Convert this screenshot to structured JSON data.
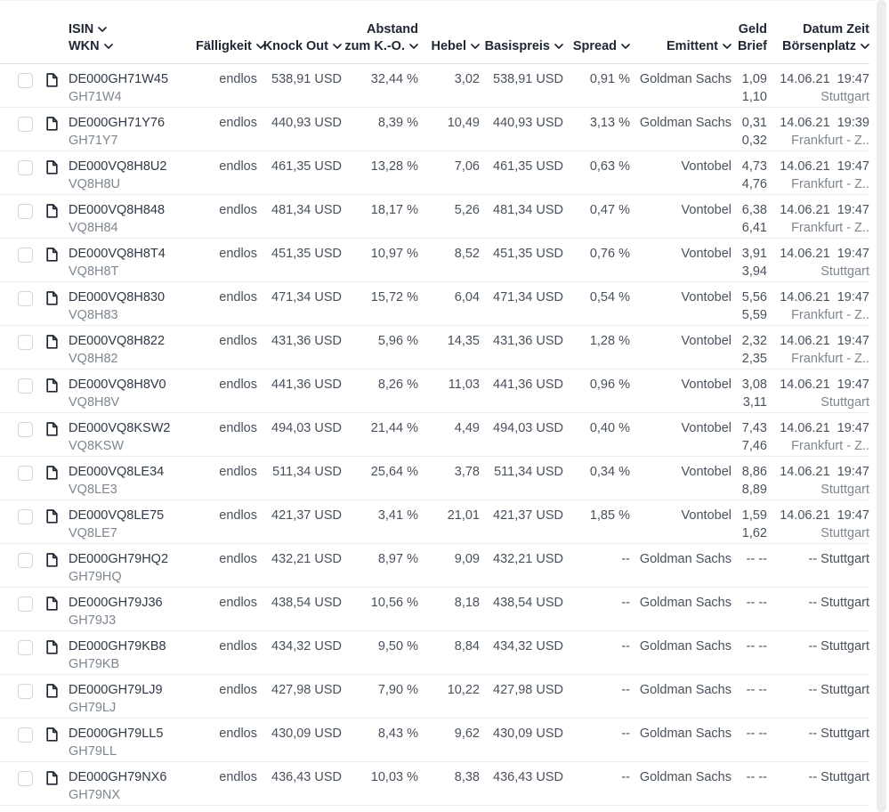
{
  "header": {
    "isin": "ISIN",
    "wkn": "WKN",
    "faelligkeit": "Fälligkeit",
    "knock_out": "Knock Out",
    "abstand_line1": "Abstand",
    "abstand_line2": "zum K.-O.",
    "hebel": "Hebel",
    "basispreis": "Basispreis",
    "spread": "Spread",
    "emittent": "Emittent",
    "geld": "Geld",
    "brief": "Brief",
    "datum_zeit": "Datum Zeit",
    "boersenplatz": "Börsenplatz"
  },
  "icons": {
    "sort": "chevron-down-icon",
    "document": "document-icon",
    "checkbox": "checkbox"
  },
  "colors": {
    "header_text": "#1f2733",
    "primary_text": "#49515c",
    "isin_text": "#2f3945",
    "secondary_text": "#7e8690",
    "row_divider": "#ecedef",
    "header_divider": "#dde0e3",
    "checkbox_border": "#d3d5d8",
    "scrollbar_track": "#ededee"
  },
  "rows": [
    {
      "isin": "DE000GH71W45",
      "wkn": "GH71W4",
      "faelligkeit": "endlos",
      "knock_out": "538,91 USD",
      "abstand": "32,44 %",
      "hebel": "3,02",
      "basispreis": "538,91 USD",
      "spread": "0,91 %",
      "emittent": "Goldman Sachs",
      "geld_brief": [
        "1,09",
        "1,10"
      ],
      "datum_boerse": [
        "14.06.21  19:47",
        "Stuttgart"
      ]
    },
    {
      "isin": "DE000GH71Y76",
      "wkn": "GH71Y7",
      "faelligkeit": "endlos",
      "knock_out": "440,93 USD",
      "abstand": "8,39 %",
      "hebel": "10,49",
      "basispreis": "440,93 USD",
      "spread": "3,13 %",
      "emittent": "Goldman Sachs",
      "geld_brief": [
        "0,31",
        "0,32"
      ],
      "datum_boerse": [
        "14.06.21  19:39",
        "Frankfurt - Z.."
      ]
    },
    {
      "isin": "DE000VQ8H8U2",
      "wkn": "VQ8H8U",
      "faelligkeit": "endlos",
      "knock_out": "461,35 USD",
      "abstand": "13,28 %",
      "hebel": "7,06",
      "basispreis": "461,35 USD",
      "spread": "0,63 %",
      "emittent": "Vontobel",
      "geld_brief": [
        "4,73",
        "4,76"
      ],
      "datum_boerse": [
        "14.06.21  19:47",
        "Frankfurt - Z.."
      ]
    },
    {
      "isin": "DE000VQ8H848",
      "wkn": "VQ8H84",
      "faelligkeit": "endlos",
      "knock_out": "481,34 USD",
      "abstand": "18,17 %",
      "hebel": "5,26",
      "basispreis": "481,34 USD",
      "spread": "0,47 %",
      "emittent": "Vontobel",
      "geld_brief": [
        "6,38",
        "6,41"
      ],
      "datum_boerse": [
        "14.06.21  19:47",
        "Frankfurt - Z.."
      ]
    },
    {
      "isin": "DE000VQ8H8T4",
      "wkn": "VQ8H8T",
      "faelligkeit": "endlos",
      "knock_out": "451,35 USD",
      "abstand": "10,97 %",
      "hebel": "8,52",
      "basispreis": "451,35 USD",
      "spread": "0,76 %",
      "emittent": "Vontobel",
      "geld_brief": [
        "3,91",
        "3,94"
      ],
      "datum_boerse": [
        "14.06.21  19:47",
        "Stuttgart"
      ]
    },
    {
      "isin": "DE000VQ8H830",
      "wkn": "VQ8H83",
      "faelligkeit": "endlos",
      "knock_out": "471,34 USD",
      "abstand": "15,72 %",
      "hebel": "6,04",
      "basispreis": "471,34 USD",
      "spread": "0,54 %",
      "emittent": "Vontobel",
      "geld_brief": [
        "5,56",
        "5,59"
      ],
      "datum_boerse": [
        "14.06.21  19:47",
        "Frankfurt - Z.."
      ]
    },
    {
      "isin": "DE000VQ8H822",
      "wkn": "VQ8H82",
      "faelligkeit": "endlos",
      "knock_out": "431,36 USD",
      "abstand": "5,96 %",
      "hebel": "14,35",
      "basispreis": "431,36 USD",
      "spread": "1,28 %",
      "emittent": "Vontobel",
      "geld_brief": [
        "2,32",
        "2,35"
      ],
      "datum_boerse": [
        "14.06.21  19:47",
        "Frankfurt - Z.."
      ]
    },
    {
      "isin": "DE000VQ8H8V0",
      "wkn": "VQ8H8V",
      "faelligkeit": "endlos",
      "knock_out": "441,36 USD",
      "abstand": "8,26 %",
      "hebel": "11,03",
      "basispreis": "441,36 USD",
      "spread": "0,96 %",
      "emittent": "Vontobel",
      "geld_brief": [
        "3,08",
        "3,11"
      ],
      "datum_boerse": [
        "14.06.21  19:47",
        "Stuttgart"
      ]
    },
    {
      "isin": "DE000VQ8KSW2",
      "wkn": "VQ8KSW",
      "faelligkeit": "endlos",
      "knock_out": "494,03 USD",
      "abstand": "21,44 %",
      "hebel": "4,49",
      "basispreis": "494,03 USD",
      "spread": "0,40 %",
      "emittent": "Vontobel",
      "geld_brief": [
        "7,43",
        "7,46"
      ],
      "datum_boerse": [
        "14.06.21  19:47",
        "Frankfurt - Z.."
      ]
    },
    {
      "isin": "DE000VQ8LE34",
      "wkn": "VQ8LE3",
      "faelligkeit": "endlos",
      "knock_out": "511,34 USD",
      "abstand": "25,64 %",
      "hebel": "3,78",
      "basispreis": "511,34 USD",
      "spread": "0,34 %",
      "emittent": "Vontobel",
      "geld_brief": [
        "8,86",
        "8,89"
      ],
      "datum_boerse": [
        "14.06.21  19:47",
        "Stuttgart"
      ]
    },
    {
      "isin": "DE000VQ8LE75",
      "wkn": "VQ8LE7",
      "faelligkeit": "endlos",
      "knock_out": "421,37 USD",
      "abstand": "3,41 %",
      "hebel": "21,01",
      "basispreis": "421,37 USD",
      "spread": "1,85 %",
      "emittent": "Vontobel",
      "geld_brief": [
        "1,59",
        "1,62"
      ],
      "datum_boerse": [
        "14.06.21  19:47",
        "Stuttgart"
      ]
    },
    {
      "isin": "DE000GH79HQ2",
      "wkn": "GH79HQ",
      "faelligkeit": "endlos",
      "knock_out": "432,21 USD",
      "abstand": "8,97 %",
      "hebel": "9,09",
      "basispreis": "432,21 USD",
      "spread": "--",
      "emittent": "Goldman Sachs",
      "geld_brief": [
        "-- --"
      ],
      "datum_boerse": [
        "-- Stuttgart"
      ]
    },
    {
      "isin": "DE000GH79J36",
      "wkn": "GH79J3",
      "faelligkeit": "endlos",
      "knock_out": "438,54 USD",
      "abstand": "10,56 %",
      "hebel": "8,18",
      "basispreis": "438,54 USD",
      "spread": "--",
      "emittent": "Goldman Sachs",
      "geld_brief": [
        "-- --"
      ],
      "datum_boerse": [
        "-- Stuttgart"
      ]
    },
    {
      "isin": "DE000GH79KB8",
      "wkn": "GH79KB",
      "faelligkeit": "endlos",
      "knock_out": "434,32 USD",
      "abstand": "9,50 %",
      "hebel": "8,84",
      "basispreis": "434,32 USD",
      "spread": "--",
      "emittent": "Goldman Sachs",
      "geld_brief": [
        "-- --"
      ],
      "datum_boerse": [
        "-- Stuttgart"
      ]
    },
    {
      "isin": "DE000GH79LJ9",
      "wkn": "GH79LJ",
      "faelligkeit": "endlos",
      "knock_out": "427,98 USD",
      "abstand": "7,90 %",
      "hebel": "10,22",
      "basispreis": "427,98 USD",
      "spread": "--",
      "emittent": "Goldman Sachs",
      "geld_brief": [
        "-- --"
      ],
      "datum_boerse": [
        "-- Stuttgart"
      ]
    },
    {
      "isin": "DE000GH79LL5",
      "wkn": "GH79LL",
      "faelligkeit": "endlos",
      "knock_out": "430,09 USD",
      "abstand": "8,43 %",
      "hebel": "9,62",
      "basispreis": "430,09 USD",
      "spread": "--",
      "emittent": "Goldman Sachs",
      "geld_brief": [
        "-- --"
      ],
      "datum_boerse": [
        "-- Stuttgart"
      ]
    },
    {
      "isin": "DE000GH79NX6",
      "wkn": "GH79NX",
      "faelligkeit": "endlos",
      "knock_out": "436,43 USD",
      "abstand": "10,03 %",
      "hebel": "8,38",
      "basispreis": "436,43 USD",
      "spread": "--",
      "emittent": "Goldman Sachs",
      "geld_brief": [
        "-- --"
      ],
      "datum_boerse": [
        "-- Stuttgart"
      ]
    }
  ]
}
